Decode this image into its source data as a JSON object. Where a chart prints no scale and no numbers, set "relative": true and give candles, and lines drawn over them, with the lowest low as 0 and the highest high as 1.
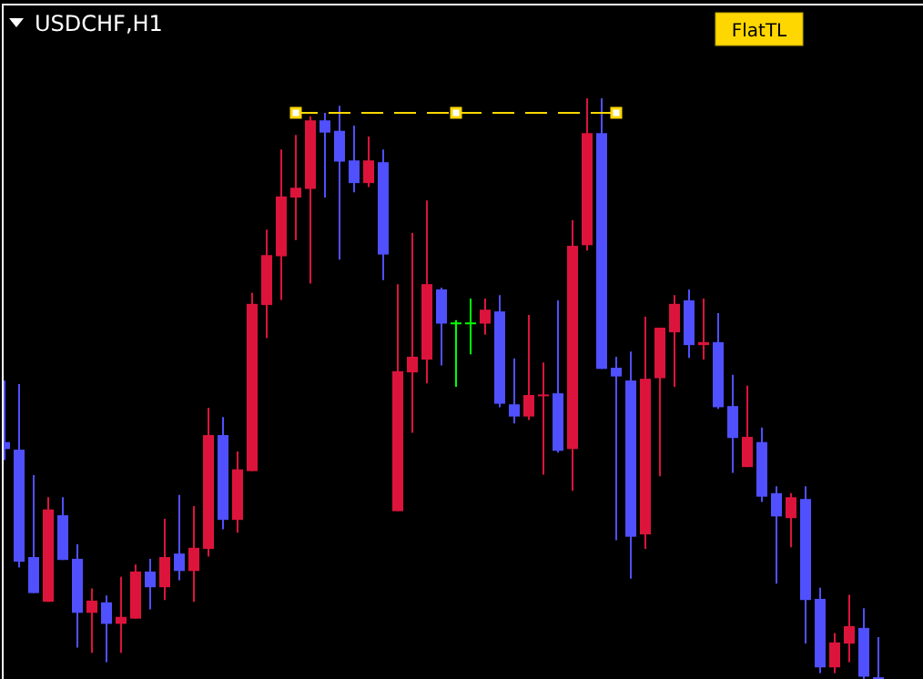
{
  "chart_data": {
    "type": "candlestick",
    "title": "USDCHF,H1",
    "annotations": [
      "FlatTL"
    ],
    "relative": true,
    "categories": [
      null,
      null,
      null,
      null,
      null,
      null,
      null,
      null,
      null,
      null,
      null,
      null,
      null,
      null,
      null,
      null,
      null,
      null,
      null,
      null,
      null,
      null,
      null,
      null,
      null,
      null,
      null,
      null,
      null,
      null,
      null,
      null,
      null,
      null,
      null,
      null,
      null,
      null,
      null,
      null,
      null,
      null,
      null,
      null,
      null,
      null,
      null,
      null,
      null,
      null,
      null,
      null,
      null,
      null,
      null,
      null,
      null,
      null,
      null,
      null,
      null
    ],
    "ohlc": [
      [
        0.408,
        0.514,
        0.377,
        0.396
      ],
      [
        0.395,
        0.508,
        0.192,
        0.202
      ],
      [
        0.21,
        0.351,
        0.148,
        0.148
      ],
      [
        0.133,
        0.313,
        0.133,
        0.292
      ],
      [
        0.282,
        0.313,
        0.205,
        0.205
      ],
      [
        0.207,
        0.232,
        0.054,
        0.114
      ],
      [
        0.114,
        0.156,
        0.045,
        0.135
      ],
      [
        0.132,
        0.144,
        0.029,
        0.095
      ],
      [
        0.095,
        0.176,
        0.045,
        0.107
      ],
      [
        0.104,
        0.197,
        0.104,
        0.185
      ],
      [
        0.185,
        0.207,
        0.12,
        0.158
      ],
      [
        0.158,
        0.276,
        0.136,
        0.21
      ],
      [
        0.216,
        0.317,
        0.17,
        0.186
      ],
      [
        0.186,
        0.298,
        0.133,
        0.226
      ],
      [
        0.224,
        0.467,
        0.211,
        0.42
      ],
      [
        0.42,
        0.451,
        0.258,
        0.274
      ],
      [
        0.274,
        0.392,
        0.252,
        0.361
      ],
      [
        0.358,
        0.665,
        0.358,
        0.646
      ],
      [
        0.644,
        0.774,
        0.587,
        0.73
      ],
      [
        0.728,
        0.912,
        0.653,
        0.831
      ],
      [
        0.829,
        0.937,
        0.756,
        0.846
      ],
      [
        0.844,
        0.969,
        0.681,
        0.962
      ],
      [
        0.962,
        0.975,
        0.829,
        0.941
      ],
      [
        0.944,
        0.987,
        0.722,
        0.891
      ],
      [
        0.893,
        0.953,
        0.838,
        0.854
      ],
      [
        0.854,
        0.934,
        0.847,
        0.893
      ],
      [
        0.89,
        0.912,
        0.687,
        0.731
      ],
      [
        0.289,
        0.68,
        0.289,
        0.53
      ],
      [
        0.528,
        0.768,
        0.424,
        0.555
      ],
      [
        0.55,
        0.824,
        0.509,
        0.68
      ],
      [
        0.671,
        0.674,
        0.54,
        0.612
      ],
      [
        0.614,
        0.618,
        0.503,
        0.614
      ],
      [
        0.614,
        0.655,
        0.559,
        0.614
      ],
      [
        0.612,
        0.655,
        0.593,
        0.636
      ],
      [
        0.633,
        0.661,
        0.468,
        0.474
      ],
      [
        0.473,
        0.552,
        0.44,
        0.452
      ],
      [
        0.452,
        0.627,
        0.446,
        0.489
      ],
      [
        0.489,
        0.545,
        0.352,
        0.49
      ],
      [
        0.492,
        0.652,
        0.39,
        0.393
      ],
      [
        0.396,
        0.79,
        0.324,
        0.746
      ],
      [
        0.747,
        1.0,
        0.738,
        0.94
      ],
      [
        0.94,
        1.0,
        0.534,
        0.534
      ],
      [
        0.536,
        0.555,
        0.239,
        0.521
      ],
      [
        0.514,
        0.564,
        0.173,
        0.245
      ],
      [
        0.249,
        0.624,
        0.224,
        0.517
      ],
      [
        0.518,
        0.605,
        0.349,
        0.605
      ],
      [
        0.597,
        0.661,
        0.503,
        0.646
      ],
      [
        0.652,
        0.671,
        0.553,
        0.575
      ],
      [
        0.575,
        0.655,
        0.55,
        0.58
      ],
      [
        0.58,
        0.63,
        0.465,
        0.468
      ],
      [
        0.47,
        0.524,
        0.355,
        0.415
      ],
      [
        0.365,
        0.505,
        0.365,
        0.417
      ],
      [
        0.408,
        0.433,
        0.305,
        0.314
      ],
      [
        0.32,
        0.332,
        0.164,
        0.28
      ],
      [
        0.277,
        0.32,
        0.227,
        0.313
      ],
      [
        0.31,
        0.332,
        0.061,
        0.136
      ],
      [
        0.138,
        0.157,
        0.01,
        0.02
      ],
      [
        0.02,
        0.079,
        0.01,
        0.063
      ],
      [
        0.061,
        0.145,
        0.029,
        0.091
      ],
      [
        0.088,
        0.122,
        0.0,
        0.004
      ],
      [
        0.003,
        0.072,
        0.0,
        0.0
      ]
    ],
    "colors": [
      "#5050ff",
      "#5050ff",
      "#5050ff",
      "#dc143c",
      "#5050ff",
      "#5050ff",
      "#dc143c",
      "#5050ff",
      "#dc143c",
      "#dc143c",
      "#5050ff",
      "#dc143c",
      "#5050ff",
      "#dc143c",
      "#dc143c",
      "#5050ff",
      "#dc143c",
      "#dc143c",
      "#dc143c",
      "#dc143c",
      "#dc143c",
      "#dc143c",
      "#5050ff",
      "#5050ff",
      "#5050ff",
      "#dc143c",
      "#5050ff",
      "#dc143c",
      "#dc143c",
      "#dc143c",
      "#5050ff",
      "#00ff00",
      "#00ff00",
      "#dc143c",
      "#5050ff",
      "#5050ff",
      "#dc143c",
      "#dc143c",
      "#5050ff",
      "#dc143c",
      "#dc143c",
      "#5050ff",
      "#5050ff",
      "#5050ff",
      "#dc143c",
      "#dc143c",
      "#dc143c",
      "#5050ff",
      "#dc143c",
      "#5050ff",
      "#5050ff",
      "#dc143c",
      "#5050ff",
      "#5050ff",
      "#dc143c",
      "#5050ff",
      "#5050ff",
      "#dc143c",
      "#dc143c",
      "#5050ff",
      "#5050ff"
    ],
    "series": [
      {
        "type": "line",
        "color": "#ffd700",
        "line_style": "dashed",
        "values": [
          null,
          null,
          null,
          null,
          null,
          null,
          null,
          null,
          null,
          null,
          null,
          null,
          null,
          null,
          null,
          null,
          null,
          null,
          null,
          null,
          0.975,
          0.975,
          0.975,
          0.975,
          0.975,
          0.975,
          0.975,
          0.975,
          0.975,
          0.975,
          0.975,
          0.975,
          0.975,
          0.975,
          0.975,
          0.975,
          0.975,
          0.975,
          0.975,
          0.975,
          0.975,
          0.975,
          0.975,
          null,
          null,
          null,
          null,
          null,
          null,
          null,
          null,
          null,
          null,
          null,
          null,
          null,
          null,
          null,
          null,
          null,
          null
        ]
      }
    ]
  }
}
